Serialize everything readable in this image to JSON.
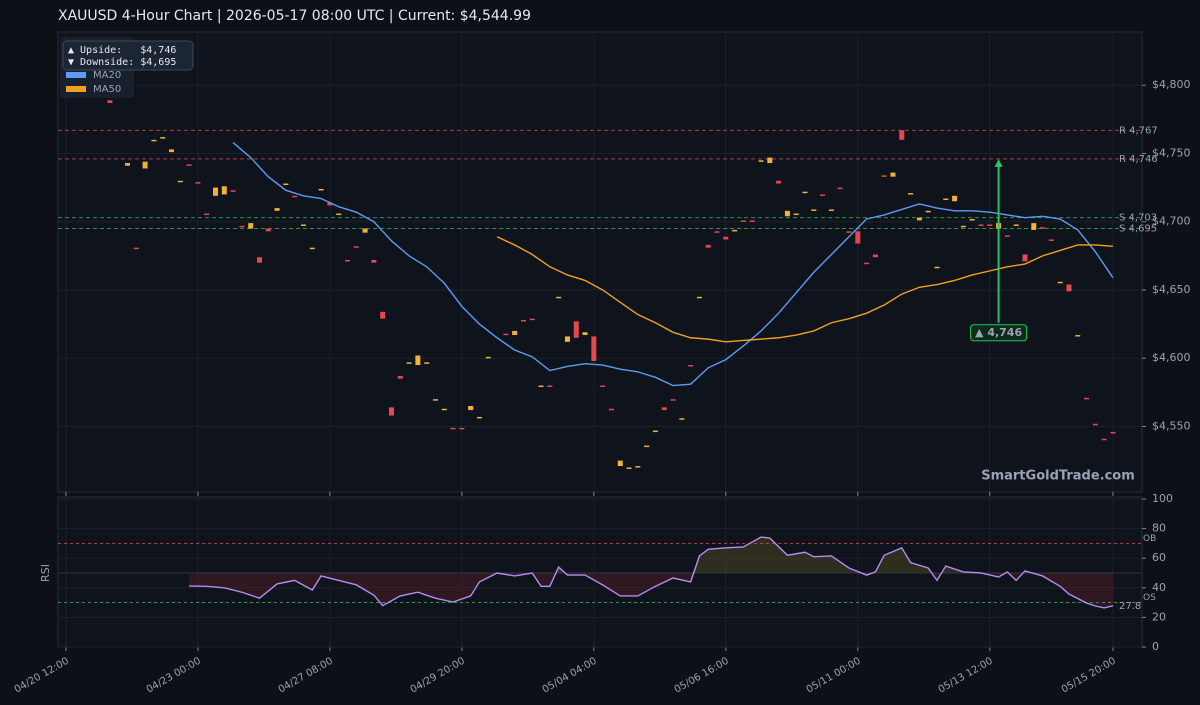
{
  "chart_data": [
    {
      "type": "candlestick",
      "title": "XAUUSD  4-Hour Chart  |  2026-05-17 08:00 UTC  |  Current: $4,544.99",
      "xlim": [
        -0.9,
        122.3
      ],
      "xticks": [
        {
          "value": 0,
          "label": "04/20 12:00"
        },
        {
          "value": 15,
          "label": "04/23 00:00"
        },
        {
          "value": 30,
          "label": "04/27 08:00"
        },
        {
          "value": 45,
          "label": "04/29 20:00"
        },
        {
          "value": 60,
          "label": "05/04 04:00"
        },
        {
          "value": 75,
          "label": "05/06 16:00"
        },
        {
          "value": 90,
          "label": "05/11 00:00"
        },
        {
          "value": 105,
          "label": "05/13 12:00"
        },
        {
          "value": 119,
          "label": "05/15 20:00"
        }
      ],
      "ylim": [
        4502,
        4839
      ],
      "yticks": [
        {
          "value": 4550,
          "label": "$4,550"
        },
        {
          "value": 4600,
          "label": "$4,600"
        },
        {
          "value": 4650,
          "label": "$4,650"
        },
        {
          "value": 4700,
          "label": "$4,700"
        },
        {
          "value": 4750,
          "label": "$4,750"
        },
        {
          "value": 4800,
          "label": "$4,800"
        }
      ],
      "grid": true,
      "up_color": "#f2b233",
      "down_color": "#e5484d",
      "candles": {
        "x": [
          5,
          7,
          8,
          9,
          10,
          11,
          12,
          13,
          14,
          15,
          16,
          17,
          18,
          19,
          20,
          21,
          22,
          23,
          24,
          25,
          26,
          27,
          28,
          29,
          30,
          31,
          32,
          33,
          34,
          35,
          36,
          37,
          38,
          39,
          40,
          41,
          42,
          43,
          44,
          45,
          46,
          47,
          48,
          50,
          51,
          52,
          53,
          54,
          55,
          56,
          57,
          58,
          59,
          60,
          61,
          62,
          63,
          64,
          65,
          66,
          67,
          68,
          69,
          70,
          71,
          72,
          73,
          74,
          75,
          76,
          77,
          78,
          79,
          80,
          81,
          82,
          83,
          84,
          85,
          86,
          87,
          88,
          89,
          90,
          91,
          92,
          93,
          94,
          95,
          96,
          97,
          98,
          99,
          100,
          101,
          102,
          103,
          104,
          105,
          106,
          107,
          108,
          109,
          110,
          111,
          112,
          113,
          114,
          115,
          116,
          117,
          118,
          119
        ],
        "open": [
          4789,
          4741,
          4681,
          4739,
          4759,
          4761,
          4751,
          4729,
          4742,
          4729,
          4706,
          4719,
          4720,
          4723,
          4697,
          4695,
          4674,
          4695,
          4708,
          4727,
          4719,
          4697,
          4680,
          4723,
          4714,
          4705,
          4672,
          4682,
          4692,
          4672,
          4634,
          4564,
          4587,
          4596,
          4595,
          4596,
          4569,
          4562,
          4549,
          4549,
          4562,
          4556,
          4600,
          4618,
          4617,
          4628,
          4629,
          4579,
          4580,
          4644,
          4612,
          4627,
          4617,
          4616,
          4580,
          4563,
          4521,
          4519,
          4520,
          4535,
          4546,
          4564,
          4570,
          4555,
          4595,
          4644,
          4683,
          4693,
          4689,
          4693,
          4701,
          4701,
          4744,
          4743,
          4730,
          4704,
          4705,
          4721,
          4708,
          4720,
          4708,
          4725,
          4693,
          4693,
          4670,
          4676,
          4734,
          4733,
          4767,
          4720,
          4701,
          4707,
          4666,
          4716,
          4715,
          4696,
          4701,
          4698,
          4698,
          4695,
          4690,
          4697,
          4676,
          4694,
          4696,
          4687,
          4655,
          4654,
          4616,
          4571,
          4552,
          4541,
          4546
        ],
        "close": [
          4787,
          4743,
          4680,
          4744,
          4760,
          4762,
          4753,
          4730,
          4741,
          4728,
          4705,
          4725,
          4726,
          4722,
          4696,
          4699,
          4670,
          4693,
          4710,
          4728,
          4718,
          4698,
          4681,
          4724,
          4712,
          4706,
          4671,
          4681,
          4695,
          4670,
          4629,
          4558,
          4585,
          4597,
          4602,
          4597,
          4570,
          4563,
          4548,
          4548,
          4565,
          4557,
          4601,
          4617,
          4620,
          4627,
          4628,
          4580,
          4579,
          4645,
          4616,
          4615,
          4619,
          4598,
          4579,
          4562,
          4525,
          4520,
          4521,
          4536,
          4547,
          4562,
          4569,
          4556,
          4594,
          4645,
          4681,
          4692,
          4687,
          4694,
          4700,
          4700,
          4745,
          4747,
          4728,
          4708,
          4706,
          4722,
          4709,
          4719,
          4709,
          4724,
          4692,
          4684,
          4669,
          4674,
          4733,
          4736,
          4760,
          4721,
          4703,
          4708,
          4667,
          4717,
          4719,
          4697,
          4702,
          4697,
          4697,
          4699,
          4689,
          4698,
          4671,
          4699,
          4695,
          4686,
          4656,
          4649,
          4617,
          4570,
          4551,
          4540,
          4544.99
        ]
      },
      "series": [
        {
          "name": "MA20",
          "color": "#5b9cf5",
          "x": [
            19,
            21,
            23,
            25,
            27,
            29,
            31,
            33,
            35,
            37,
            39,
            41,
            43,
            45,
            47,
            49,
            51,
            53,
            55,
            57,
            59,
            61,
            63,
            65,
            67,
            69,
            71,
            73,
            75,
            77,
            79,
            81,
            83,
            85,
            87,
            89,
            91,
            93,
            95,
            97,
            99,
            101,
            103,
            105,
            107,
            109,
            111,
            113,
            115,
            117,
            119
          ],
          "values": [
            4758,
            4747,
            4733,
            4723,
            4719,
            4717,
            4711,
            4707,
            4700,
            4686,
            4675,
            4667,
            4655,
            4638,
            4625,
            4615,
            4606,
            4601,
            4591,
            4594,
            4596,
            4595,
            4592,
            4590,
            4586,
            4580,
            4581,
            4593,
            4599,
            4609,
            4620,
            4633,
            4648,
            4663,
            4676,
            4689,
            4702,
            4705,
            4709,
            4713,
            4710,
            4708,
            4708,
            4707,
            4705,
            4703,
            4704,
            4702,
            4694,
            4678,
            4659
          ]
        },
        {
          "name": "MA50",
          "color": "#f0a020",
          "x": [
            49,
            51,
            53,
            55,
            57,
            59,
            61,
            63,
            65,
            67,
            69,
            71,
            73,
            75,
            77,
            79,
            81,
            83,
            85,
            87,
            89,
            91,
            93,
            95,
            97,
            99,
            101,
            103,
            105,
            107,
            109,
            111,
            113,
            115,
            117,
            119
          ],
          "values": [
            4689,
            4683,
            4676,
            4667,
            4661,
            4657,
            4650,
            4641,
            4632,
            4626,
            4619,
            4615,
            4614,
            4612,
            4613,
            4614,
            4615,
            4617,
            4620,
            4626,
            4629,
            4633,
            4639,
            4647,
            4652,
            4654,
            4657,
            4661,
            4664,
            4667,
            4669,
            4675,
            4679,
            4683,
            4683,
            4682
          ]
        }
      ],
      "levels": [
        {
          "label": "R 4,767",
          "value": 4767,
          "color": "#e5484d"
        },
        {
          "label": "R 4,746",
          "value": 4746,
          "color": "#e5484d"
        },
        {
          "label": "S 4,703",
          "value": 4703,
          "color": "#22c55e"
        },
        {
          "label": "S 4,695",
          "value": 4695,
          "color": "#22c55e"
        }
      ],
      "target": {
        "x": 106,
        "from": 4626,
        "to": 4746,
        "label": "▲ 4,746",
        "color": "#22c55e"
      },
      "info": [
        "▲ Upside:   $4,746",
        "▼ Downside: $4,695"
      ],
      "watermark": "SmartGoldTrade.com"
    },
    {
      "type": "line",
      "ylabel": "RSI",
      "ylim": [
        0,
        100
      ],
      "yticks": [
        0,
        20,
        40,
        60,
        80,
        100
      ],
      "overbought": 70,
      "oversold": 30,
      "midline": 50,
      "ob_label": "OB",
      "os_label": "OS",
      "last_label": "27.8",
      "series": [
        {
          "name": "RSI",
          "color": "#b48cf2",
          "x": [
            14,
            16,
            18,
            20,
            22,
            24,
            26,
            28,
            29,
            31,
            33,
            35,
            36,
            38,
            40,
            42,
            44,
            46,
            47,
            49,
            51,
            53,
            54,
            55,
            56,
            57,
            59,
            61,
            63,
            65,
            67,
            69,
            71,
            72,
            73,
            75,
            77,
            79,
            80,
            82,
            84,
            85,
            87,
            89,
            91,
            92,
            93,
            95,
            96,
            98,
            99,
            100,
            102,
            104,
            106,
            107,
            108,
            109,
            111,
            113,
            114,
            116,
            117,
            118,
            119
          ],
          "values": [
            41.2,
            41,
            40,
            37,
            33,
            42.6,
            45,
            38.5,
            48,
            45,
            42,
            35,
            28,
            34.5,
            37,
            33,
            30.4,
            34.5,
            44,
            50,
            48,
            50,
            41,
            41,
            54,
            48.6,
            48.6,
            42,
            34.5,
            34.5,
            41,
            46.6,
            44,
            61.5,
            66,
            67,
            67.6,
            74.3,
            73.6,
            62,
            64,
            61,
            61.5,
            53.4,
            48.6,
            50.7,
            62,
            67,
            57,
            53.4,
            45,
            54.7,
            50.7,
            50,
            47.3,
            50.7,
            45,
            51.4,
            48,
            41,
            35.8,
            29.7,
            27.7,
            26.4,
            27.8
          ]
        }
      ]
    }
  ]
}
